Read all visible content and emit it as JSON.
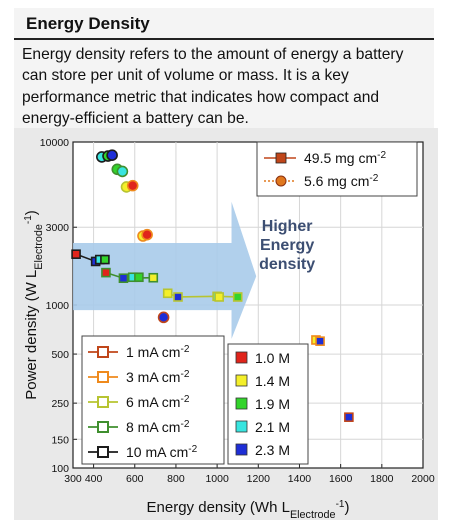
{
  "card": {
    "title": "Energy Density",
    "description_lines": [
      "Energy density refers to the amount of energy a battery",
      "can store per unit of volume or mass. It is a key",
      "performance metric that indicates how compact and",
      "energy-efficient a battery can be."
    ]
  },
  "colors": {
    "header_bg": "#f4f4f4",
    "figure_bg": "#e9e9e9",
    "arrow": "#a9cbea",
    "arrow_text": "#3c4e72",
    "loading_high": "#c0461a",
    "loading_low": "#e0781e"
  },
  "chart_data": {
    "type": "scatter",
    "xlabel": "Energy density (Wh L",
    "xlabel_sub": "Electrode",
    "xlabel_sup": "-1",
    "ylabel": "Power density (W L",
    "ylabel_sub": "Electrode",
    "ylabel_sup": "-1",
    "xlim": [
      300,
      2000
    ],
    "ylim": [
      100,
      10000
    ],
    "yscale": "log",
    "xticks": [
      300,
      400,
      600,
      800,
      1000,
      1200,
      1400,
      1600,
      1800,
      2000
    ],
    "yticks": [
      100,
      150,
      250,
      500,
      1000,
      3000,
      10000
    ],
    "xtick_labels": [
      "300",
      "400",
      "600",
      "800",
      "1000",
      "1200",
      "1400",
      "1600",
      "1800",
      "2000"
    ],
    "ytick_labels": [
      "100",
      "150",
      "250",
      "500",
      "1000",
      "3000",
      "10000"
    ],
    "annotation": [
      "Higher",
      "Energy",
      "density"
    ],
    "legend_loading": {
      "title": "",
      "entries": [
        {
          "label": "49.5 mg cm",
          "sup": "-2",
          "color": "#c0461a",
          "marker": "square",
          "dashed": false
        },
        {
          "label": "5.6 mg cm",
          "sup": "-2",
          "color": "#e0781e",
          "marker": "circle",
          "dashed": true
        }
      ]
    },
    "legend_current": [
      {
        "label": "1 mA cm",
        "sup": "-2",
        "color": "#c0461a"
      },
      {
        "label": "3 mA cm",
        "sup": "-2",
        "color": "#ef8a1c"
      },
      {
        "label": "6 mA cm",
        "sup": "-2",
        "color": "#b7c431"
      },
      {
        "label": "8 mA cm",
        "sup": "-2",
        "color": "#3f8f2e"
      },
      {
        "label": "10 mA cm",
        "sup": "-2",
        "color": "#1c1c1c"
      }
    ],
    "legend_concentration": [
      {
        "label": "1.0 M",
        "color": "#e0241b"
      },
      {
        "label": "1.4 M",
        "color": "#f4ef2a"
      },
      {
        "label": "1.9 M",
        "color": "#33d42b"
      },
      {
        "label": "2.1 M",
        "color": "#38e5e0"
      },
      {
        "label": "2.3 M",
        "color": "#1e2ed6"
      }
    ],
    "series": [
      {
        "name": "49.5 mg cm-2",
        "marker": "square",
        "points": [
          {
            "x": 315,
            "y": 2050,
            "fill": "#e0241b",
            "edge": "#1c1c1c"
          },
          {
            "x": 410,
            "y": 1850,
            "fill": "#1e2ed6",
            "edge": "#1c1c1c"
          },
          {
            "x": 430,
            "y": 1900,
            "fill": "#38e5e0",
            "edge": "#1c1c1c"
          },
          {
            "x": 455,
            "y": 1900,
            "fill": "#33d42b",
            "edge": "#1c1c1c"
          },
          {
            "x": 460,
            "y": 1580,
            "fill": "#e0241b",
            "edge": "#3f8f2e"
          },
          {
            "x": 545,
            "y": 1460,
            "fill": "#1e2ed6",
            "edge": "#3f8f2e"
          },
          {
            "x": 590,
            "y": 1480,
            "fill": "#38e5e0",
            "edge": "#3f8f2e"
          },
          {
            "x": 620,
            "y": 1480,
            "fill": "#33d42b",
            "edge": "#3f8f2e"
          },
          {
            "x": 690,
            "y": 1470,
            "fill": "#f4ef2a",
            "edge": "#3f8f2e"
          },
          {
            "x": 760,
            "y": 1180,
            "fill": "#f4ef2a",
            "edge": "#b7c431"
          },
          {
            "x": 810,
            "y": 1120,
            "fill": "#1e2ed6",
            "edge": "#b7c431"
          },
          {
            "x": 1000,
            "y": 1130,
            "fill": "#38e5e0",
            "edge": "#b7c431"
          },
          {
            "x": 1010,
            "y": 1120,
            "fill": "#f4ef2a",
            "edge": "#b7c431"
          },
          {
            "x": 1100,
            "y": 1120,
            "fill": "#33d42b",
            "edge": "#b7c431"
          },
          {
            "x": 1480,
            "y": 610,
            "fill": "#f4ef2a",
            "edge": "#ef8a1c"
          },
          {
            "x": 1500,
            "y": 600,
            "fill": "#1e2ed6",
            "edge": "#ef8a1c"
          },
          {
            "x": 1640,
            "y": 205,
            "fill": "#1e2ed6",
            "edge": "#c0461a"
          }
        ]
      },
      {
        "name": "5.6 mg cm-2",
        "marker": "circle",
        "points": [
          {
            "x": 440,
            "y": 8100,
            "fill": "#38e5e0",
            "edge": "#1c1c1c"
          },
          {
            "x": 470,
            "y": 8200,
            "fill": "#33d42b",
            "edge": "#1c1c1c"
          },
          {
            "x": 490,
            "y": 8300,
            "fill": "#1e2ed6",
            "edge": "#1c1c1c"
          },
          {
            "x": 515,
            "y": 6800,
            "fill": "#33d42b",
            "edge": "#3f8f2e"
          },
          {
            "x": 540,
            "y": 6600,
            "fill": "#38e5e0",
            "edge": "#3f8f2e"
          },
          {
            "x": 560,
            "y": 5300,
            "fill": "#f4ef2a",
            "edge": "#b7c431"
          },
          {
            "x": 590,
            "y": 5400,
            "fill": "#e0241b",
            "edge": "#ef8a1c"
          },
          {
            "x": 640,
            "y": 2650,
            "fill": "#f4ef2a",
            "edge": "#ef8a1c"
          },
          {
            "x": 660,
            "y": 2700,
            "fill": "#e0241b",
            "edge": "#ef8a1c"
          },
          {
            "x": 740,
            "y": 840,
            "fill": "#1e2ed6",
            "edge": "#c0461a"
          }
        ]
      }
    ],
    "connector_lines": [
      {
        "color": "#1c1c1c",
        "points": [
          [
            315,
            2050
          ],
          [
            410,
            1850
          ],
          [
            455,
            1900
          ]
        ]
      },
      {
        "color": "#3f8f2e",
        "points": [
          [
            460,
            1580
          ],
          [
            545,
            1460
          ],
          [
            690,
            1470
          ]
        ]
      },
      {
        "color": "#b7c431",
        "points": [
          [
            760,
            1180
          ],
          [
            810,
            1120
          ],
          [
            1000,
            1130
          ],
          [
            1100,
            1120
          ]
        ]
      }
    ]
  }
}
